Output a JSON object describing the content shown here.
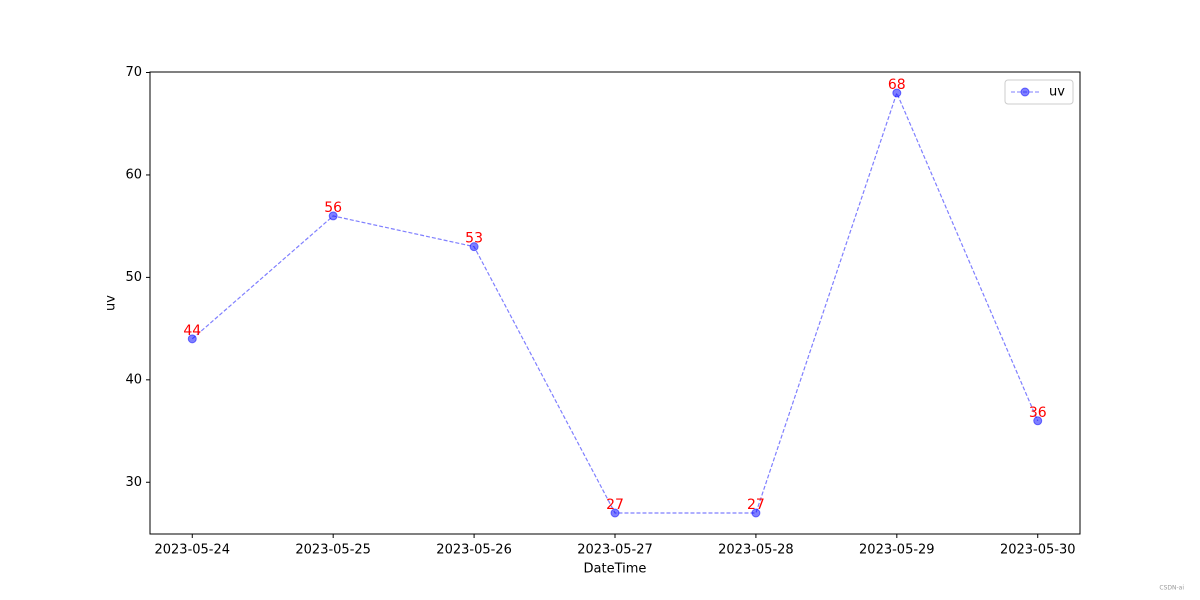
{
  "chart_data": {
    "type": "line",
    "xlabel": "DateTime",
    "ylabel": "uv",
    "categories": [
      "2023-05-24",
      "2023-05-25",
      "2023-05-26",
      "2023-05-27",
      "2023-05-28",
      "2023-05-29",
      "2023-05-30"
    ],
    "series": [
      {
        "name": "uv",
        "color": "#0000ff",
        "values": [
          44,
          56,
          53,
          27,
          27,
          68,
          36
        ]
      }
    ],
    "ylim": [
      24.95,
      70.05
    ],
    "yticks": [
      30,
      40,
      50,
      60,
      70
    ],
    "legend": "upper right",
    "data_labels_color": "#ff0000",
    "line_style": "dashed",
    "marker": "circle",
    "watermark": "CSDN-ai"
  }
}
